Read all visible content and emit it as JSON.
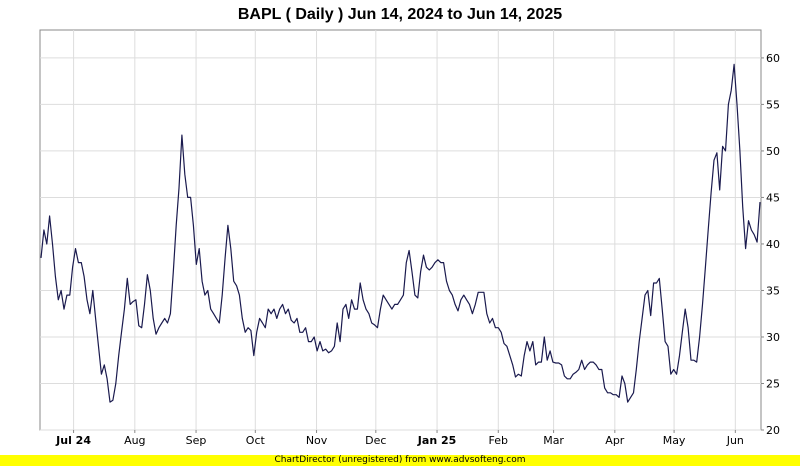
{
  "chart_data": {
    "type": "line",
    "title": "BAPL ( Daily ) Jun 14, 2024 to Jun 14, 2025",
    "series": [
      {
        "color": "#1a1a4e",
        "values": [
          38.5,
          41.5,
          40.0,
          43.0,
          40.0,
          36.5,
          34.0,
          35.0,
          33.0,
          34.5,
          34.5,
          37.5,
          39.5,
          38.0,
          38.0,
          36.5,
          34.0,
          32.5,
          35.0,
          32.0,
          29.0,
          26.0,
          27.0,
          25.5,
          23.0,
          23.2,
          25.0,
          28.0,
          30.5,
          33.0,
          36.3,
          33.5,
          33.8,
          34.0,
          31.2,
          31.0,
          33.5,
          36.7,
          35.0,
          32.0,
          30.3,
          31.0,
          31.5,
          32.0,
          31.5,
          32.5,
          37.0,
          42.0,
          46.0,
          51.7,
          47.5,
          45.0,
          45.0,
          42.0,
          37.8,
          39.5,
          36.0,
          34.5,
          35.0,
          33.0,
          32.5,
          32.0,
          31.5,
          34.5,
          38.5,
          42.0,
          39.5,
          36.0,
          35.5,
          34.5,
          32.0,
          30.5,
          31.0,
          30.7,
          28.0,
          30.5,
          32.0,
          31.5,
          31.0,
          33.0,
          32.5,
          33.0,
          32.0,
          33.0,
          33.5,
          32.5,
          33.0,
          31.8,
          31.5,
          32.0,
          30.5,
          30.5,
          31.0,
          29.5,
          29.5,
          30.0,
          28.5,
          29.5,
          28.5,
          28.7,
          28.3,
          28.5,
          29.0,
          31.5,
          29.5,
          33.0,
          33.5,
          32.0,
          34.0,
          33.0,
          33.0,
          35.8,
          34.0,
          33.0,
          32.5,
          31.5,
          31.3,
          31.0,
          33.0,
          34.5,
          34.0,
          33.5,
          33.0,
          33.5,
          33.5,
          34.0,
          34.5,
          38.0,
          39.3,
          37.0,
          34.5,
          34.2,
          37.0,
          38.8,
          37.5,
          37.2,
          37.5,
          38.0,
          38.3,
          38.0,
          38.0,
          36.0,
          35.0,
          34.5,
          33.5,
          32.8,
          34.0,
          34.5,
          34.0,
          33.5,
          32.5,
          33.5,
          34.8,
          34.8,
          34.8,
          32.5,
          31.5,
          32.0,
          31.0,
          31.0,
          30.5,
          29.3,
          29.0,
          28.0,
          27.0,
          25.7,
          26.0,
          25.8,
          28.0,
          29.5,
          28.5,
          29.5,
          27.0,
          27.3,
          27.3,
          30.0,
          27.5,
          28.5,
          27.3,
          27.2,
          27.2,
          27.0,
          25.8,
          25.5,
          25.5,
          26.0,
          26.2,
          26.5,
          27.5,
          26.5,
          27.0,
          27.3,
          27.3,
          27.0,
          26.5,
          26.5,
          24.5,
          24.0,
          24.0,
          23.8,
          23.8,
          23.5,
          25.8,
          25.0,
          23.0,
          23.5,
          24.0,
          26.5,
          29.5,
          32.0,
          34.5,
          35.0,
          32.3,
          35.8,
          35.8,
          36.3,
          33.0,
          29.5,
          29.0,
          26.0,
          26.5,
          26.0,
          28.0,
          30.5,
          33.0,
          31.0,
          27.5,
          27.5,
          27.3,
          30.0,
          33.5,
          37.5,
          41.5,
          45.5,
          49.0,
          49.8,
          45.8,
          50.5,
          50.0,
          55.0,
          56.5,
          59.3,
          55.0,
          50.0,
          44.0,
          39.5,
          42.5,
          41.5,
          41.0,
          40.2,
          44.5
        ]
      }
    ],
    "x_start": "2024-06-14",
    "x_end": "2025-06-14",
    "x_tick_labels": [
      "Jul 24",
      "Aug",
      "Sep",
      "Oct",
      "Nov",
      "Dec",
      "Jan 25",
      "Feb",
      "Mar",
      "Apr",
      "May",
      "Jun"
    ],
    "x_tick_dates": [
      "2024-07-01",
      "2024-08-01",
      "2024-09-01",
      "2024-10-01",
      "2024-11-01",
      "2024-12-01",
      "2025-01-01",
      "2025-02-01",
      "2025-03-01",
      "2025-04-01",
      "2025-05-01",
      "2025-06-01"
    ],
    "y_ticks": [
      "20",
      "25",
      "30",
      "35",
      "40",
      "45",
      "50",
      "55",
      "60"
    ],
    "ylim": [
      20,
      63
    ],
    "y_axis_position": "right",
    "grid": true
  },
  "footer": {
    "credit": "ChartDirector (unregistered) from www.advsofteng.com"
  }
}
